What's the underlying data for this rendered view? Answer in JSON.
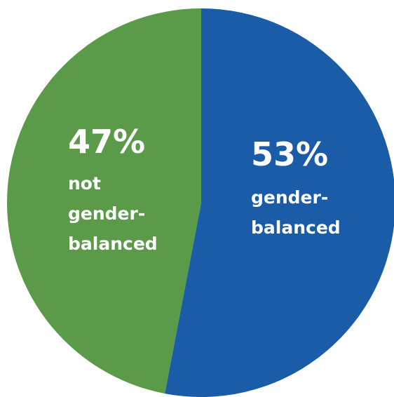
{
  "chart_data": {
    "type": "pie",
    "categories": [
      "gender-balanced",
      "not gender-balanced"
    ],
    "values": [
      53,
      47
    ],
    "value_labels": [
      "53%",
      "47%"
    ],
    "colors": [
      "#1a5ca8",
      "#5a9a48"
    ]
  }
}
